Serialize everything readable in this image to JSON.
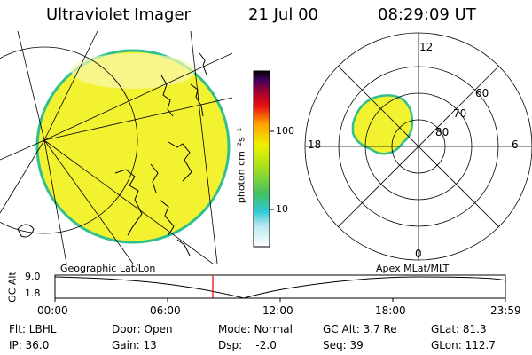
{
  "header": {
    "instrument": "Ultraviolet Imager",
    "date": "21 Jul 00",
    "time": "08:29:09 UT"
  },
  "colorbar": {
    "unit_label": "photon cm⁻²s⁻¹",
    "ticks": [
      "100",
      "10"
    ]
  },
  "polar_plot": {
    "mlt_labels": [
      "12",
      "18",
      "6",
      "0"
    ],
    "lat_labels": [
      "60",
      "70",
      "80"
    ]
  },
  "panels": {
    "left_label": "Geographic Lat/Lon",
    "right_label": "Apex MLat/MLT"
  },
  "altitude_plot": {
    "axis_label": "GC Alt",
    "y_ticks": [
      "9.0",
      "1.8"
    ],
    "x_ticks": [
      "00:00",
      "06:00",
      "12:00",
      "18:00",
      "23:59"
    ]
  },
  "status": {
    "flt": "Flt: LBHL",
    "ip": "IP: 36.0",
    "door": "Door: Open",
    "gain": "Gain: 13",
    "mode": "Mode: Normal",
    "dsp": "Dsp:    -2.0",
    "gc_alt": "GC Alt: 3.7 Re",
    "seq": "Seq: 39",
    "glat": "GLat: 81.3",
    "glon": "GLon: 112.7"
  }
}
